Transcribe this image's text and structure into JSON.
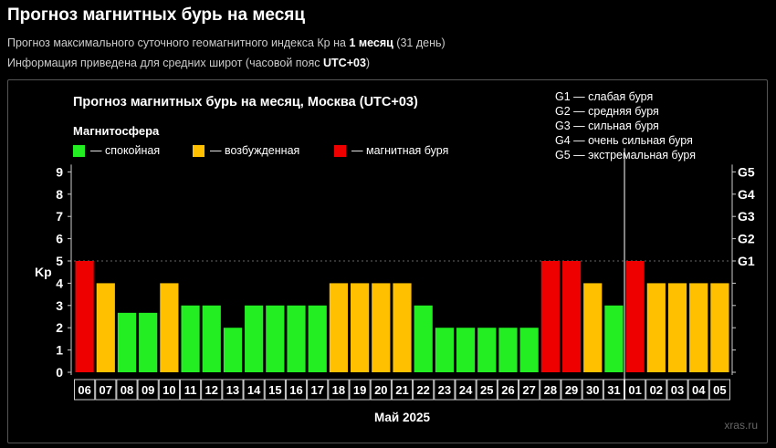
{
  "header": {
    "title": "Прогноз магнитных бурь на месяц",
    "line1_pre": "Прогноз максимального суточного геомагнитного индекса Кр на ",
    "line1_bold": "1 месяц",
    "line1_post": " (31 день)",
    "line2_pre": "Информация приведена для средних широт (часовой пояс ",
    "line2_bold": "UTC+03",
    "line2_post": ")"
  },
  "colors": {
    "calm": "#22ee22",
    "excited": "#ffc000",
    "storm": "#ee0000"
  },
  "chart_data": {
    "type": "bar",
    "title": "Прогноз магнитных бурь на месяц, Москва (UTC+03)",
    "legend_title": "Магнитосфера",
    "legend": [
      {
        "label": "— спокойная",
        "level": "calm"
      },
      {
        "label": "— возбужденная",
        "level": "excited"
      },
      {
        "label": "— магнитная буря",
        "level": "storm"
      }
    ],
    "g_legend": [
      "G1 — слабая буря",
      "G2 — средняя буря",
      "G3 — сильная буря",
      "G4 — очень сильная буря",
      "G5 — экстремальная буря"
    ],
    "ylabel": "Kp",
    "xlabel": "Май 2025",
    "ylim": [
      0,
      9
    ],
    "yticks": [
      "0",
      "1",
      "2",
      "3",
      "4",
      "5",
      "6",
      "7",
      "8",
      "9"
    ],
    "right_ticks": [
      {
        "kp": 5,
        "label": "G1"
      },
      {
        "kp": 6,
        "label": "G2"
      },
      {
        "kp": 7,
        "label": "G3"
      },
      {
        "kp": 8,
        "label": "G4"
      },
      {
        "kp": 9,
        "label": "G5"
      }
    ],
    "categories": [
      "06",
      "07",
      "08",
      "09",
      "10",
      "11",
      "12",
      "13",
      "14",
      "15",
      "16",
      "17",
      "18",
      "19",
      "20",
      "21",
      "22",
      "23",
      "24",
      "25",
      "26",
      "27",
      "28",
      "29",
      "30",
      "31",
      "01",
      "02",
      "03",
      "04",
      "05"
    ],
    "values": [
      5,
      4,
      2.67,
      2.67,
      4,
      3,
      3,
      2,
      3,
      3,
      3,
      3,
      4,
      4,
      4,
      4,
      3,
      2,
      2,
      2,
      2,
      2,
      5,
      5,
      4,
      3,
      5,
      4,
      4,
      4,
      4
    ],
    "levels": [
      "storm",
      "excited",
      "calm",
      "calm",
      "excited",
      "calm",
      "calm",
      "calm",
      "calm",
      "calm",
      "calm",
      "calm",
      "excited",
      "excited",
      "excited",
      "excited",
      "calm",
      "calm",
      "calm",
      "calm",
      "calm",
      "calm",
      "storm",
      "storm",
      "excited",
      "calm",
      "storm",
      "excited",
      "excited",
      "excited",
      "excited"
    ],
    "month_divider_before": "01",
    "watermark": "xras.ru"
  }
}
